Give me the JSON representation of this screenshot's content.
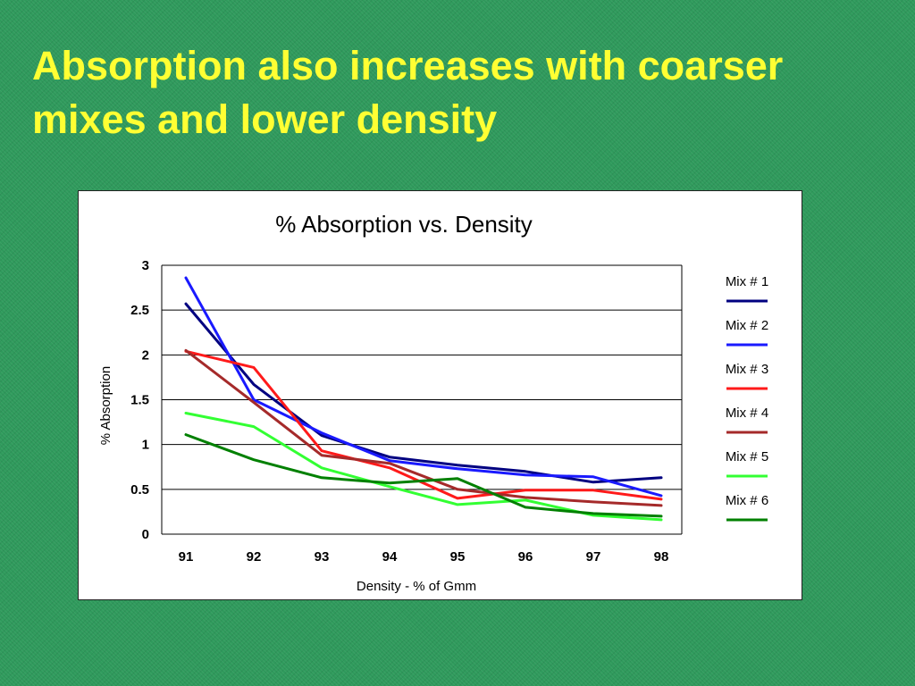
{
  "slide": {
    "title_line1": "Absorption also increases with coarser",
    "title_line2": "mixes and lower density",
    "title_color": "#ffff33",
    "background_color": "#2f9a5c"
  },
  "chart_data": {
    "type": "line",
    "title": "% Absorption vs. Density",
    "xlabel": "Density - % of Gmm",
    "ylabel": "% Absorption",
    "categories": [
      "91",
      "92",
      "93",
      "94",
      "95",
      "96",
      "97",
      "98"
    ],
    "y_ticks": [
      "0",
      "0.5",
      "1",
      "1.5",
      "2",
      "2.5",
      "3"
    ],
    "ylim": [
      0,
      3
    ],
    "grid": "horizontal",
    "legend_placement": "right",
    "series": [
      {
        "name": "Mix # 1",
        "color": "#000080",
        "values": [
          2.57,
          1.67,
          1.1,
          0.86,
          0.77,
          0.7,
          0.58,
          0.63
        ]
      },
      {
        "name": "Mix # 2",
        "color": "#1a1aff",
        "values": [
          2.86,
          1.5,
          1.13,
          0.82,
          0.73,
          0.66,
          0.64,
          0.43
        ]
      },
      {
        "name": "Mix # 3",
        "color": "#ff1a1a",
        "values": [
          2.04,
          1.86,
          0.93,
          0.74,
          0.4,
          0.49,
          0.49,
          0.39
        ]
      },
      {
        "name": "Mix # 4",
        "color": "#a52a2a",
        "values": [
          2.05,
          1.47,
          0.88,
          0.79,
          0.5,
          0.41,
          0.36,
          0.32
        ]
      },
      {
        "name": "Mix # 5",
        "color": "#33ff33",
        "values": [
          1.35,
          1.2,
          0.74,
          0.53,
          0.33,
          0.38,
          0.21,
          0.16
        ]
      },
      {
        "name": "Mix # 6",
        "color": "#008000",
        "values": [
          1.11,
          0.83,
          0.63,
          0.57,
          0.62,
          0.3,
          0.23,
          0.2
        ]
      }
    ]
  }
}
